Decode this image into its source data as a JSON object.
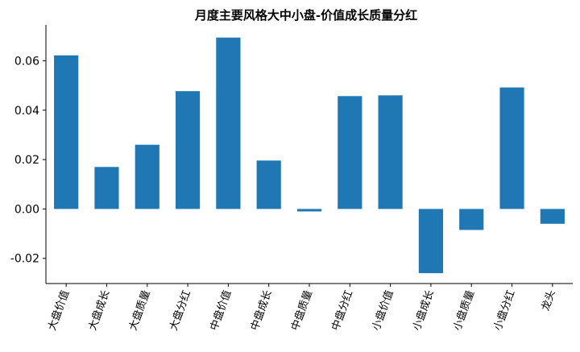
{
  "chart_data": {
    "type": "bar",
    "title": "月度主要风格大中小盘-价值成长质量分红",
    "xlabel": "",
    "ylabel": "",
    "categories": [
      "大盘价值",
      "大盘成长",
      "大盘质量",
      "大盘分红",
      "中盘价值",
      "中盘成长",
      "中盘质量",
      "中盘分红",
      "小盘价值",
      "小盘成长",
      "小盘质量",
      "小盘分红",
      "龙头"
    ],
    "values": [
      0.0622,
      0.017,
      0.026,
      0.0477,
      0.0694,
      0.0196,
      -0.001,
      0.0457,
      0.046,
      -0.026,
      -0.0085,
      0.0492,
      -0.006
    ],
    "ylim": [
      -0.0302,
      0.0745
    ],
    "yticks": [
      -0.02,
      0.0,
      0.02,
      0.04,
      0.06
    ],
    "ytick_labels": [
      "-0.02",
      "0.00",
      "0.02",
      "0.04",
      "0.06"
    ],
    "bar_color": "#1f77b4",
    "grid": false,
    "legend": "none"
  }
}
